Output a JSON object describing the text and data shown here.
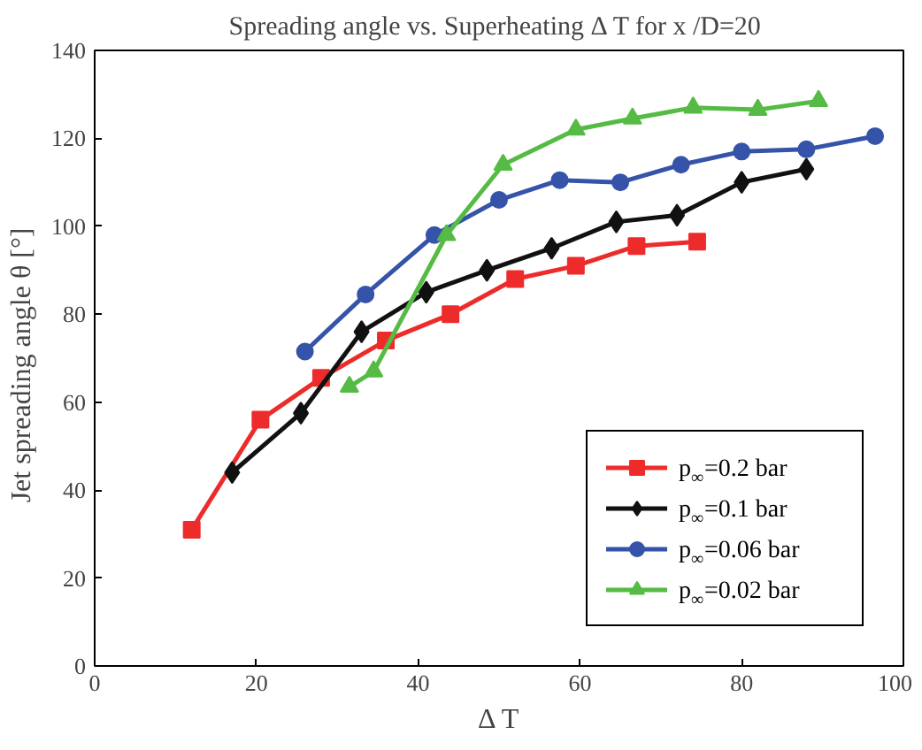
{
  "chart_data": {
    "type": "line",
    "title": "Spreading angle vs. Superheating Δ T for  x /D=20",
    "xlabel": "Δ T",
    "ylabel": "Jet spreading angle   θ [°]",
    "xlim": [
      0,
      100
    ],
    "ylim": [
      0,
      140
    ],
    "xticks": [
      0,
      20,
      40,
      60,
      80,
      100
    ],
    "yticks": [
      0,
      20,
      40,
      60,
      80,
      100,
      120,
      140
    ],
    "grid": false,
    "legend": "bottom right",
    "line_style": "solid",
    "series": [
      {
        "name": "p$_{∞}$=0.2 bar",
        "color": "#ee2b2b",
        "marker": "square",
        "x": [
          12,
          20.5,
          28,
          36,
          44,
          52,
          59.5,
          67,
          74.5
        ],
        "values": [
          31,
          56,
          65.5,
          74,
          80,
          88,
          91,
          95.5,
          96.5
        ]
      },
      {
        "name": "p$_{∞}$=0.1 bar",
        "color": "#111111",
        "marker": "diamond",
        "x": [
          17,
          25.5,
          33,
          41,
          48.5,
          56.5,
          64.5,
          72,
          80,
          88
        ],
        "values": [
          44,
          57.5,
          76,
          85,
          90,
          95,
          101,
          102.5,
          110,
          113
        ]
      },
      {
        "name": "p$_{∞}$=0.06 bar",
        "color": "#3553a8",
        "marker": "circle",
        "x": [
          26,
          33.5,
          42,
          50,
          57.5,
          65,
          72.5,
          80,
          88,
          96.5
        ],
        "values": [
          71.5,
          84.5,
          98,
          106,
          110.5,
          110,
          114,
          117,
          117.5,
          120.5
        ]
      },
      {
        "name": "p$_{∞}$=0.02 bar",
        "color": "#55bb44",
        "marker": "triangle",
        "x": [
          31.5,
          34.5,
          43.5,
          50.5,
          59.5,
          66.5,
          74,
          82,
          89.5
        ],
        "values": [
          63.5,
          67,
          98,
          114,
          122,
          124.5,
          127,
          126.5,
          128.5
        ]
      }
    ]
  }
}
